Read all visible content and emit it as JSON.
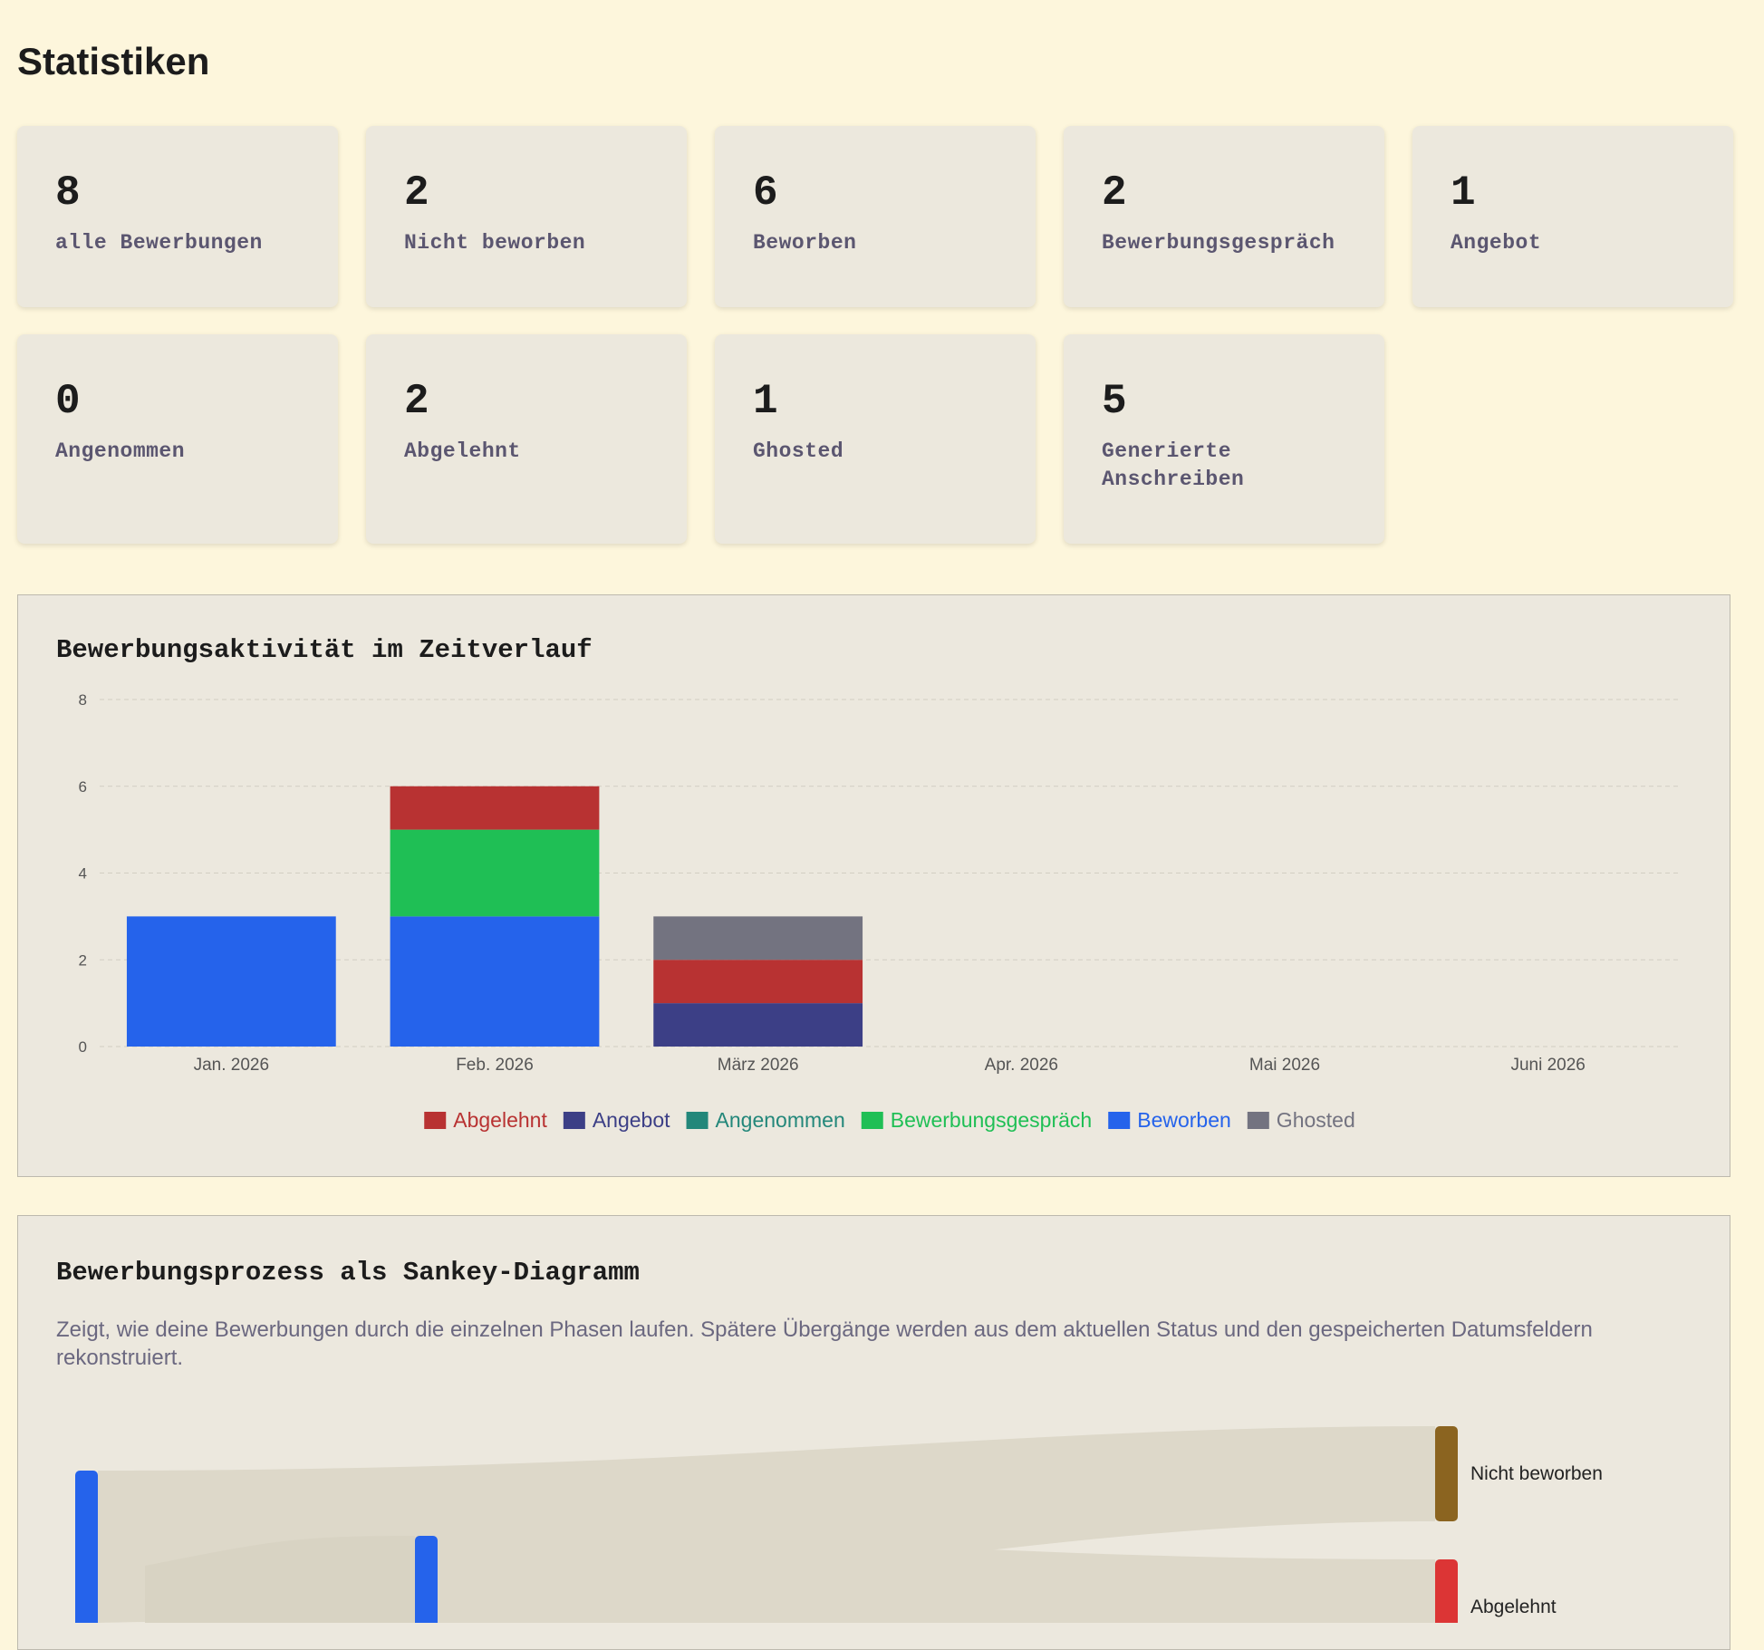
{
  "title": "Statistiken",
  "stats": [
    {
      "value": 8,
      "label": "alle Bewerbungen"
    },
    {
      "value": 2,
      "label": "Nicht beworben"
    },
    {
      "value": 6,
      "label": "Beworben"
    },
    {
      "value": 2,
      "label": "Bewerbungsgespräch"
    },
    {
      "value": 1,
      "label": "Angebot"
    },
    {
      "value": 0,
      "label": "Angenommen"
    },
    {
      "value": 2,
      "label": "Abgelehnt"
    },
    {
      "value": 1,
      "label": "Ghosted"
    },
    {
      "value": 5,
      "label": "Generierte Anschreiben"
    }
  ],
  "chart_data": {
    "type": "bar",
    "stacked": true,
    "title": "Bewerbungsaktivität im Zeitverlauf",
    "categories": [
      "Jan. 2026",
      "Feb. 2026",
      "März 2026",
      "Apr. 2026",
      "Mai 2026",
      "Juni 2026"
    ],
    "series": [
      {
        "name": "Abgelehnt",
        "color": "#b83232",
        "values": [
          0,
          1,
          1,
          0,
          0,
          0
        ]
      },
      {
        "name": "Angebot",
        "color": "#3c3f86",
        "values": [
          0,
          0,
          1,
          0,
          0,
          0
        ]
      },
      {
        "name": "Angenommen",
        "color": "#23877a",
        "values": [
          0,
          0,
          0,
          0,
          0,
          0
        ]
      },
      {
        "name": "Bewerbungsgespräch",
        "color": "#1fbf55",
        "values": [
          0,
          2,
          0,
          0,
          0,
          0
        ]
      },
      {
        "name": "Beworben",
        "color": "#2563eb",
        "values": [
          3,
          3,
          0,
          0,
          0,
          0
        ]
      },
      {
        "name": "Ghosted",
        "color": "#737380",
        "values": [
          0,
          0,
          1,
          0,
          0,
          0
        ]
      }
    ],
    "ylim": [
      0,
      8
    ],
    "yticks": [
      0,
      2,
      4,
      6,
      8
    ],
    "grid": true,
    "legend": "bottom"
  },
  "sankey": {
    "title": "Bewerbungsprozess als Sankey-Diagramm",
    "description": "Zeigt, wie deine Bewerbungen durch die einzelnen Phasen laufen. Spätere Übergänge werden aus dem aktuellen Status und den gespeicherten Datumsfeldern rekonstruiert.",
    "nodes": [
      {
        "label": "Nicht beworben",
        "color": "#8b6420"
      },
      {
        "label": "Abgelehnt",
        "color": "#dc3535"
      }
    ]
  }
}
